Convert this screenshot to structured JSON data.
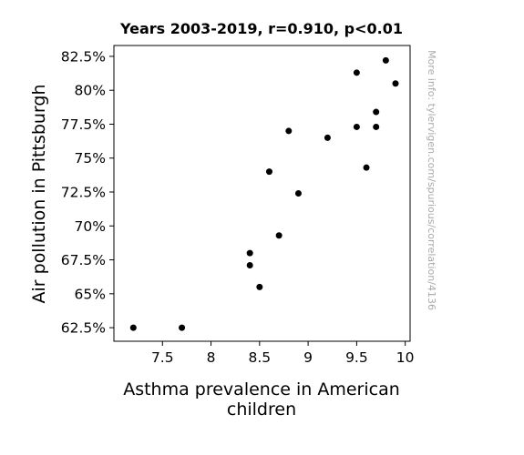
{
  "chart_data": {
    "type": "scatter",
    "title": "Years 2003-2019, r=0.910, p<0.01",
    "xlabel_lines": [
      "Asthma prevalence in American",
      "children"
    ],
    "ylabel": "Air pollution in Pittsburgh",
    "watermark": "More info: tylervigen.com/spurious/correlation/4136",
    "xlim": [
      7.0,
      10.05
    ],
    "ylim": [
      61.5,
      83.3
    ],
    "xticks": [
      7.5,
      8,
      8.5,
      9,
      9.5,
      10
    ],
    "xtick_labels": [
      "7.5",
      "8",
      "8.5",
      "9",
      "9.5",
      "10"
    ],
    "yticks": [
      62.5,
      65,
      67.5,
      70,
      72.5,
      75,
      77.5,
      80,
      82.5
    ],
    "ytick_labels": [
      "62.5%",
      "65%",
      "67.5%",
      "70%",
      "72.5%",
      "75%",
      "77.5%",
      "80%",
      "82.5%"
    ],
    "point_color": "#000000",
    "grid": false,
    "points": [
      {
        "x": 7.2,
        "y": 62.5
      },
      {
        "x": 7.7,
        "y": 62.5
      },
      {
        "x": 8.4,
        "y": 68.0
      },
      {
        "x": 8.4,
        "y": 67.1
      },
      {
        "x": 8.5,
        "y": 65.5
      },
      {
        "x": 8.6,
        "y": 74.0
      },
      {
        "x": 8.7,
        "y": 69.3
      },
      {
        "x": 8.8,
        "y": 77.0
      },
      {
        "x": 8.9,
        "y": 72.4
      },
      {
        "x": 9.2,
        "y": 76.5
      },
      {
        "x": 9.5,
        "y": 81.3
      },
      {
        "x": 9.5,
        "y": 77.3
      },
      {
        "x": 9.6,
        "y": 74.3
      },
      {
        "x": 9.7,
        "y": 78.4
      },
      {
        "x": 9.7,
        "y": 77.3
      },
      {
        "x": 9.8,
        "y": 82.2
      },
      {
        "x": 9.9,
        "y": 80.5
      }
    ]
  }
}
